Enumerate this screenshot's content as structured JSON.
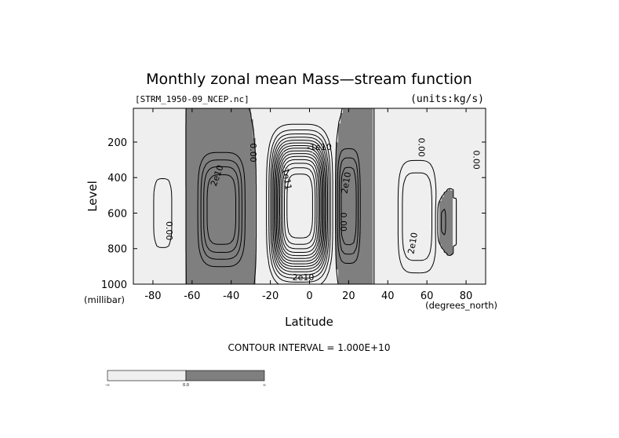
{
  "chart_data": {
    "type": "contour",
    "title": "Monthly zonal mean Mass—stream function",
    "file_label": "[STRM_1950-09_NCEP.nc]",
    "units_label": "(units:kg/s)",
    "xlabel": "Latitude",
    "ylabel": "Level",
    "x_units": "(degrees_north)",
    "y_units": "(millibar)",
    "xlim": [
      -90,
      90
    ],
    "ylim": [
      1000,
      10
    ],
    "y_reversed": true,
    "x_ticks": [
      -80,
      -60,
      -40,
      -20,
      0,
      20,
      40,
      60,
      80
    ],
    "x_tick_labels": [
      "-80",
      "-60",
      "-40",
      "-20",
      "0",
      "20",
      "40",
      "60",
      "80"
    ],
    "y_ticks": [
      200,
      400,
      600,
      800,
      1000
    ],
    "y_tick_labels": [
      "200",
      "400",
      "600",
      "800",
      "1000"
    ],
    "contour_interval_text": "CONTOUR INTERVAL = 1.000E+10",
    "fill_colors": {
      "negative": "#efefef",
      "positive": "#7f7f7f"
    },
    "colorbar": {
      "labels": [
        "-∞",
        "0.0",
        "∞"
      ],
      "colors": [
        "#efefef",
        "#7f7f7f"
      ]
    },
    "contour_labels": [
      {
        "text": "2e10",
        "lat": -47,
        "p": 390,
        "rot": -70
      },
      {
        "text": "0.00",
        "lat": -72,
        "p": 700,
        "rot": 90
      },
      {
        "text": "0.00",
        "lat": -29,
        "p": 260,
        "rot": 90
      },
      {
        "text": "-1e11",
        "lat": -12,
        "p": 400,
        "rot": 80
      },
      {
        "text": "-1e10",
        "lat": 5,
        "p": 230,
        "rot": 0
      },
      {
        "text": "2e10",
        "lat": 19,
        "p": 430,
        "rot": -80
      },
      {
        "text": "0.00",
        "lat": 17,
        "p": 650,
        "rot": 90
      },
      {
        "text": "0.00",
        "lat": 57,
        "p": 230,
        "rot": 90
      },
      {
        "text": "2e10",
        "lat": 53,
        "p": 770,
        "rot": -80
      },
      {
        "text": "0.00",
        "lat": 85,
        "p": 300,
        "rot": 90
      },
      {
        "text": "-2e10",
        "lat": -4,
        "p": 965,
        "rot": 0
      }
    ],
    "features": [
      {
        "name": "southern-positive-cell",
        "sign": "positive",
        "center_lat": -45,
        "center_p": 600,
        "max_abs": 50000000000.0
      },
      {
        "name": "hadley-negative-cell",
        "sign": "negative",
        "center_lat": -5,
        "center_p": 550,
        "max_abs": 160000000000.0
      },
      {
        "name": "northern-positive-cell",
        "sign": "positive",
        "center_lat": 20,
        "center_p": 550,
        "max_abs": 40000000000.0
      },
      {
        "name": "ferrel-negative-cell",
        "sign": "negative",
        "center_lat": 55,
        "center_p": 600,
        "max_abs": 30000000000.0
      }
    ]
  }
}
